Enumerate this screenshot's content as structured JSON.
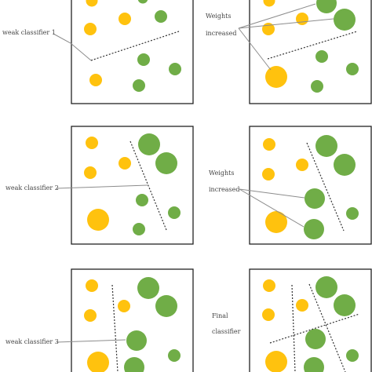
{
  "labels": {
    "weak_classifier_1": "weak classifier 1",
    "weak_classifier_2": "weak classifier 2",
    "weak_classifier_3": "weak classifier 3",
    "weights_line1": "Weights",
    "weights_line2": "increased",
    "final_line1": "Final",
    "final_line2": "classifier"
  },
  "colors": {
    "yellow": "#FFC20E",
    "green": "#70AD47",
    "frame": "#222222",
    "pointer": "#8c8c8c",
    "text": "#444444"
  }
}
